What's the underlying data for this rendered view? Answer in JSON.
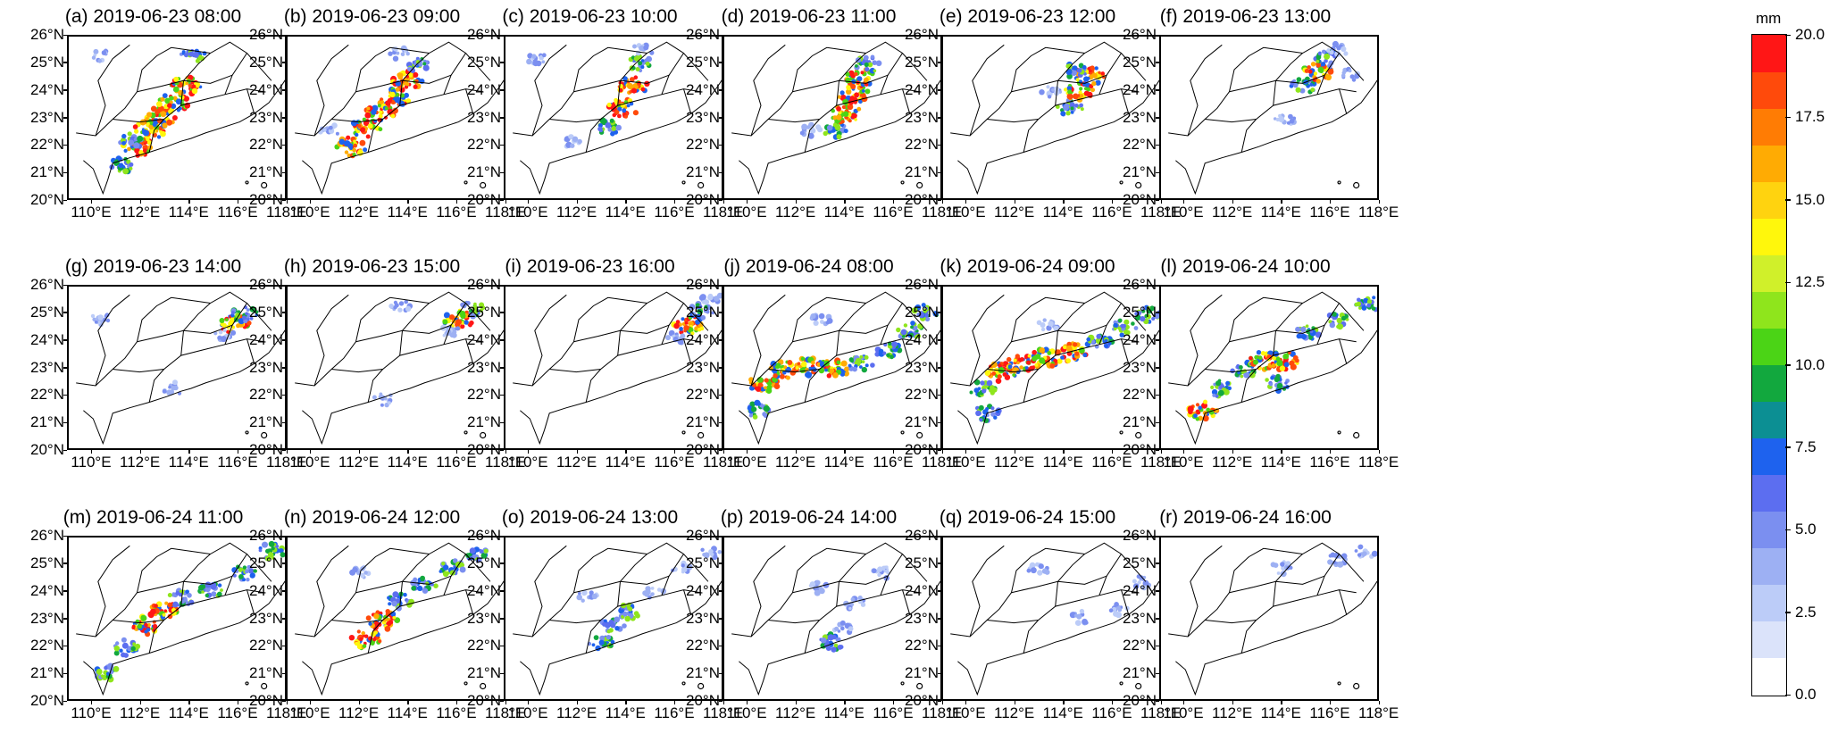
{
  "axes": {
    "lat_labels": [
      "26°N",
      "25°N",
      "24°N",
      "23°N",
      "22°N",
      "21°N",
      "20°N"
    ],
    "lon_labels": [
      "110°E",
      "112°E",
      "114°E",
      "116°E",
      "118°E"
    ],
    "lon_range": [
      109,
      118
    ],
    "lat_range": [
      20,
      26
    ]
  },
  "panels": [
    {
      "title": "(a) 2019-06-23 08:00",
      "rain": [
        [
          111.2,
          21.3,
          2
        ],
        [
          111.8,
          22.0,
          3
        ],
        [
          112.3,
          22.6,
          3
        ],
        [
          112.8,
          23.1,
          3
        ],
        [
          113.3,
          23.6,
          3
        ],
        [
          113.8,
          24.2,
          3
        ],
        [
          114.1,
          25.3,
          2
        ],
        [
          110.3,
          25.3,
          1
        ],
        [
          111.5,
          22.2,
          2
        ]
      ]
    },
    {
      "title": "(b) 2019-06-23 09:00",
      "rain": [
        [
          111.6,
          22.0,
          3
        ],
        [
          112.2,
          22.7,
          3
        ],
        [
          112.8,
          23.3,
          3
        ],
        [
          113.4,
          23.8,
          3
        ],
        [
          113.9,
          24.4,
          3
        ],
        [
          114.4,
          25.0,
          2
        ],
        [
          113.6,
          25.4,
          1
        ],
        [
          110.7,
          22.6,
          1
        ]
      ]
    },
    {
      "title": "(c) 2019-06-23 10:00",
      "rain": [
        [
          113.2,
          22.7,
          2
        ],
        [
          113.8,
          23.4,
          3
        ],
        [
          114.2,
          24.2,
          3
        ],
        [
          114.5,
          25.0,
          2
        ],
        [
          114.6,
          25.5,
          1
        ],
        [
          111.7,
          22.2,
          1
        ],
        [
          110.3,
          25.2,
          1
        ]
      ]
    },
    {
      "title": "(d) 2019-06-23 11:00",
      "rain": [
        [
          113.6,
          22.6,
          2
        ],
        [
          114.0,
          23.2,
          3
        ],
        [
          114.3,
          23.9,
          3
        ],
        [
          114.6,
          24.5,
          3
        ],
        [
          114.9,
          25.0,
          2
        ],
        [
          112.5,
          22.6,
          1
        ]
      ]
    },
    {
      "title": "(e) 2019-06-23 12:00",
      "rain": [
        [
          114.2,
          23.4,
          2
        ],
        [
          114.6,
          24.0,
          3
        ],
        [
          115.0,
          24.6,
          3
        ],
        [
          114.4,
          24.8,
          2
        ],
        [
          113.4,
          24.0,
          1
        ]
      ]
    },
    {
      "title": "(f) 2019-06-23 13:00",
      "rain": [
        [
          114.8,
          24.2,
          2
        ],
        [
          115.4,
          24.7,
          3
        ],
        [
          115.8,
          25.2,
          2
        ],
        [
          116.2,
          25.5,
          1
        ],
        [
          114.1,
          23.0,
          1
        ],
        [
          116.8,
          24.6,
          1
        ]
      ]
    },
    {
      "title": "(g) 2019-06-23 14:00",
      "rain": [
        [
          115.8,
          24.6,
          3
        ],
        [
          116.2,
          25.0,
          2
        ],
        [
          115.4,
          24.3,
          1
        ],
        [
          113.3,
          22.3,
          1
        ],
        [
          110.3,
          24.8,
          1
        ]
      ]
    },
    {
      "title": "(h) 2019-06-23 15:00",
      "rain": [
        [
          116.0,
          24.8,
          3
        ],
        [
          116.5,
          25.2,
          2
        ],
        [
          115.6,
          24.4,
          1
        ],
        [
          112.9,
          21.9,
          1
        ],
        [
          113.6,
          25.3,
          1
        ]
      ]
    },
    {
      "title": "(i) 2019-06-23 16:00",
      "rain": [
        [
          116.5,
          24.6,
          3
        ],
        [
          117.0,
          25.1,
          2
        ],
        [
          117.4,
          25.6,
          1
        ],
        [
          115.9,
          24.1,
          1
        ]
      ]
    },
    {
      "title": "(j) 2019-06-24 08:00",
      "rain": [
        [
          110.6,
          22.5,
          3
        ],
        [
          111.5,
          23.0,
          3
        ],
        [
          112.5,
          23.1,
          3
        ],
        [
          113.5,
          23.0,
          3
        ],
        [
          114.6,
          23.2,
          2
        ],
        [
          115.7,
          23.7,
          2
        ],
        [
          116.6,
          24.4,
          2
        ],
        [
          117.3,
          25.1,
          2
        ],
        [
          110.3,
          21.5,
          2
        ],
        [
          113.0,
          24.8,
          1
        ]
      ]
    },
    {
      "title": "(k) 2019-06-24 09:00",
      "rain": [
        [
          110.6,
          22.3,
          2
        ],
        [
          111.4,
          22.9,
          3
        ],
        [
          112.2,
          23.2,
          3
        ],
        [
          113.2,
          23.4,
          3
        ],
        [
          114.3,
          23.6,
          3
        ],
        [
          115.4,
          24.0,
          2
        ],
        [
          116.4,
          24.5,
          2
        ],
        [
          117.4,
          25.0,
          2
        ],
        [
          110.8,
          21.4,
          2
        ],
        [
          113.3,
          24.6,
          1
        ]
      ]
    },
    {
      "title": "(l) 2019-06-24 10:00",
      "rain": [
        [
          110.7,
          21.5,
          3
        ],
        [
          111.4,
          22.3,
          2
        ],
        [
          112.4,
          23.0,
          2
        ],
        [
          113.2,
          23.3,
          3
        ],
        [
          114.0,
          23.3,
          3
        ],
        [
          115.0,
          24.3,
          2
        ],
        [
          116.2,
          24.8,
          2
        ],
        [
          117.5,
          25.4,
          2
        ],
        [
          113.8,
          22.5,
          2
        ]
      ]
    },
    {
      "title": "(m) 2019-06-24 11:00",
      "rain": [
        [
          111.3,
          22.0,
          2
        ],
        [
          112.2,
          22.8,
          3
        ],
        [
          112.9,
          23.3,
          3
        ],
        [
          113.6,
          23.8,
          2
        ],
        [
          114.8,
          24.1,
          2
        ],
        [
          116.2,
          24.7,
          2
        ],
        [
          117.3,
          25.5,
          2
        ],
        [
          110.6,
          21.1,
          2
        ]
      ]
    },
    {
      "title": "(n) 2019-06-24 12:00",
      "rain": [
        [
          112.2,
          22.3,
          3
        ],
        [
          112.9,
          23.0,
          3
        ],
        [
          113.6,
          23.7,
          2
        ],
        [
          114.6,
          24.3,
          2
        ],
        [
          115.7,
          24.9,
          2
        ],
        [
          116.8,
          25.3,
          2
        ],
        [
          112.0,
          24.7,
          1
        ]
      ]
    },
    {
      "title": "(o) 2019-06-24 13:00",
      "rain": [
        [
          112.9,
          22.2,
          2
        ],
        [
          113.4,
          22.8,
          2
        ],
        [
          114.1,
          23.3,
          2
        ],
        [
          115.1,
          24.0,
          1
        ],
        [
          116.2,
          24.9,
          1
        ],
        [
          117.4,
          25.5,
          1
        ],
        [
          112.4,
          23.9,
          1
        ]
      ]
    },
    {
      "title": "(p) 2019-06-24 14:00",
      "rain": [
        [
          113.4,
          22.2,
          2
        ],
        [
          113.9,
          22.7,
          1
        ],
        [
          114.4,
          23.6,
          1
        ],
        [
          115.5,
          24.7,
          1
        ],
        [
          112.9,
          24.2,
          1
        ]
      ]
    },
    {
      "title": "(q) 2019-06-24 15:00",
      "rain": [
        [
          114.7,
          23.1,
          1
        ],
        [
          116.2,
          23.4,
          1
        ],
        [
          117.2,
          24.4,
          1
        ],
        [
          112.9,
          24.8,
          1
        ]
      ]
    },
    {
      "title": "(r) 2019-06-24 16:00",
      "rain": [
        [
          116.2,
          25.2,
          1
        ],
        [
          117.4,
          25.5,
          1
        ],
        [
          113.9,
          24.9,
          1
        ]
      ]
    }
  ],
  "colorbar": {
    "unit": "mm",
    "labels": [
      "20.0",
      "17.5",
      "15.0",
      "12.5",
      "10.0",
      "7.5",
      "5.0",
      "2.5",
      "0.0"
    ],
    "levels_bottom_to_top": [
      "#ffffff",
      "#dbe3fa",
      "#bcccf8",
      "#9db0f3",
      "#7b8ff0",
      "#5c6ef0",
      "#1e62ee",
      "#0c8f93",
      "#12a83e",
      "#4bd416",
      "#8fe51c",
      "#d0f02a",
      "#fff70c",
      "#ffd30f",
      "#ffab03",
      "#ff7c04",
      "#ff4a0b",
      "#ff1616"
    ]
  }
}
